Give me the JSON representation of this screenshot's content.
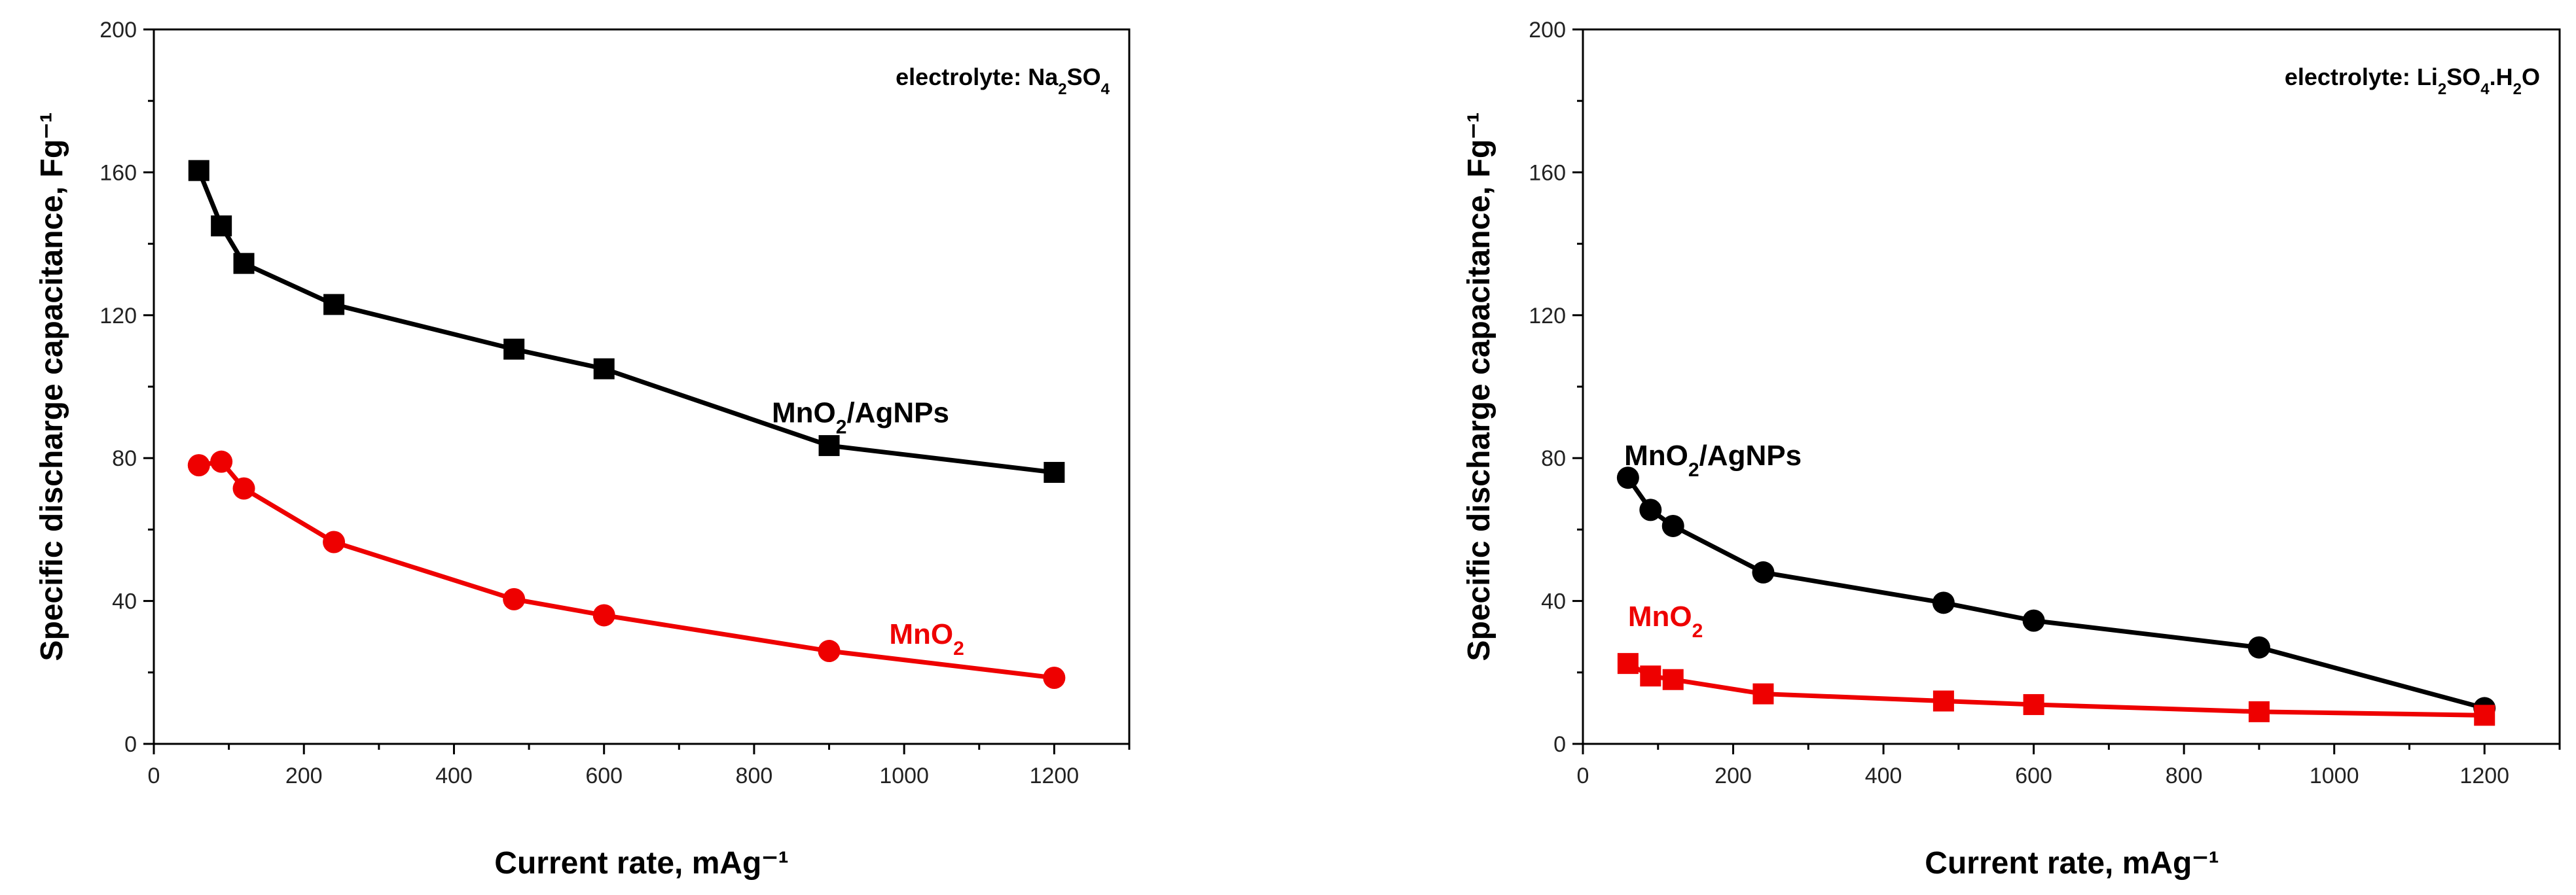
{
  "chart_data": [
    {
      "type": "line",
      "panel": "left",
      "title": "",
      "xlabel": "Current rate, mAg⁻¹",
      "ylabel": "Specific discharge capacitance, Fg⁻¹",
      "xlim": [
        0,
        1300
      ],
      "ylim": [
        0,
        200
      ],
      "xticks": [
        0,
        200,
        400,
        600,
        800,
        1000,
        1200
      ],
      "yticks": [
        0,
        40,
        80,
        120,
        160,
        200
      ],
      "annotation": {
        "prefix": "electrolyte: ",
        "formula": [
          [
            "Na",
            false
          ],
          [
            "2",
            true
          ],
          [
            "SO",
            false
          ],
          [
            "4",
            true
          ]
        ]
      },
      "series": [
        {
          "name": "MnO2/AgNPs",
          "label_parts": [
            [
              "MnO",
              false
            ],
            [
              "2",
              true
            ],
            [
              "/AgNPs",
              false
            ]
          ],
          "color": "#000000",
          "marker": "square",
          "x": [
            60,
            90,
            120,
            240,
            480,
            600,
            900,
            1200
          ],
          "y": [
            160.5,
            145,
            134.5,
            123,
            110.5,
            105,
            83.5,
            76
          ],
          "label_anchor": [
            1060,
            90
          ]
        },
        {
          "name": "MnO2",
          "label_parts": [
            [
              "MnO",
              false
            ],
            [
              "2",
              true
            ]
          ],
          "color": "#ee0000",
          "marker": "circle",
          "x": [
            60,
            90,
            120,
            240,
            480,
            600,
            900,
            1200
          ],
          "y": [
            78,
            79,
            71.5,
            56.5,
            40.5,
            36,
            26,
            18.5
          ],
          "label_anchor": [
            1080,
            28
          ]
        }
      ]
    },
    {
      "type": "line",
      "panel": "right",
      "title": "",
      "xlabel": "Current rate, mAg⁻¹",
      "ylabel": "Specific discharge capacitance, Fg⁻¹",
      "xlim": [
        0,
        1300
      ],
      "ylim": [
        0,
        200
      ],
      "xticks": [
        0,
        200,
        400,
        600,
        800,
        1000,
        1200
      ],
      "yticks": [
        0,
        40,
        80,
        120,
        160,
        200
      ],
      "annotation": {
        "prefix": "electrolyte: ",
        "formula": [
          [
            "Li",
            false
          ],
          [
            "2",
            true
          ],
          [
            "SO",
            false
          ],
          [
            "4",
            true
          ],
          [
            ".H",
            false
          ],
          [
            "2",
            true
          ],
          [
            "O",
            false
          ]
        ]
      },
      "series": [
        {
          "name": "MnO2/AgNPs",
          "label_parts": [
            [
              "MnO",
              false
            ],
            [
              "2",
              true
            ],
            [
              "/AgNPs",
              false
            ]
          ],
          "color": "#000000",
          "marker": "circle",
          "x": [
            60,
            90,
            120,
            240,
            480,
            600,
            900,
            1200
          ],
          "y": [
            74.5,
            65.5,
            61,
            48,
            39.5,
            34.5,
            27,
            10
          ],
          "label_anchor": [
            55,
            78
          ]
        },
        {
          "name": "MnO2",
          "label_parts": [
            [
              "MnO",
              false
            ],
            [
              "2",
              true
            ]
          ],
          "color": "#ee0000",
          "marker": "square",
          "x": [
            60,
            90,
            120,
            240,
            480,
            600,
            900,
            1200
          ],
          "y": [
            22.5,
            19,
            18,
            14,
            12,
            11,
            9,
            8
          ],
          "label_anchor": [
            60,
            33
          ]
        }
      ]
    }
  ]
}
